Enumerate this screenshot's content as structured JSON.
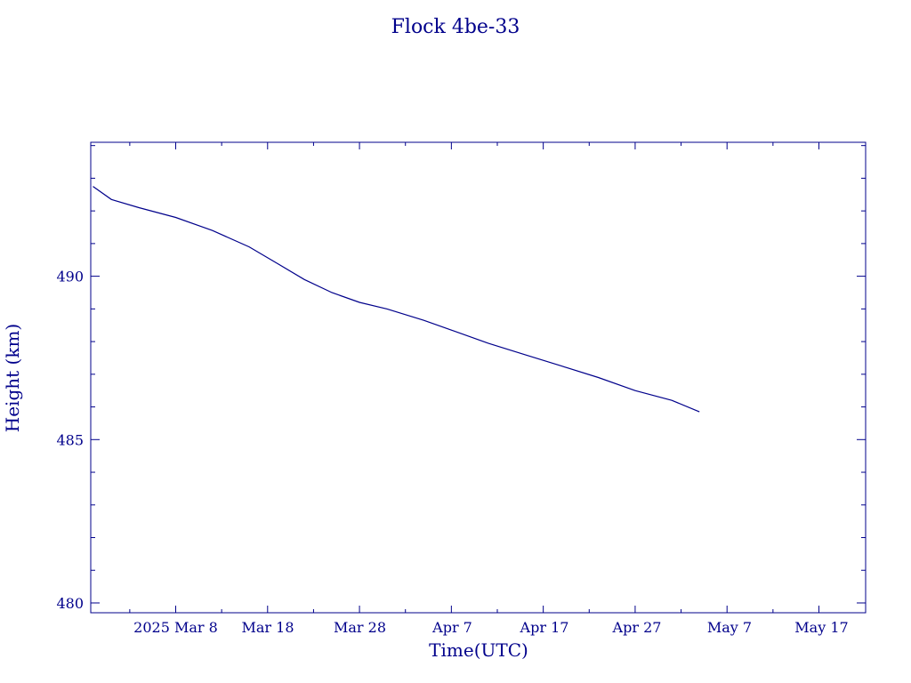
{
  "chart_data": {
    "type": "line",
    "title": "Flock 4be-33",
    "xlabel": "Time(UTC)",
    "ylabel": "Height (km)",
    "x_tick_labels": [
      "2025 Mar  8",
      "Mar 18",
      "Mar 28",
      "Apr  7",
      "Apr 17",
      "Apr 27",
      "May  7",
      "May 17"
    ],
    "y_tick_labels": [
      "480",
      "485",
      "490"
    ],
    "y_ticks": [
      480,
      485,
      490
    ],
    "ylim": [
      479.7,
      494.1
    ],
    "grid": false,
    "line_color": "#00008B",
    "series": [
      {
        "points": [
          [
            "2025-02-27",
            492.75
          ],
          [
            "2025-03-01",
            492.35
          ],
          [
            "2025-03-04",
            492.1
          ],
          [
            "2025-03-08",
            491.8
          ],
          [
            "2025-03-12",
            491.4
          ],
          [
            "2025-03-16",
            490.9
          ],
          [
            "2025-03-19",
            490.4
          ],
          [
            "2025-03-22",
            489.9
          ],
          [
            "2025-03-25",
            489.5
          ],
          [
            "2025-03-28",
            489.2
          ],
          [
            "2025-03-31",
            489.0
          ],
          [
            "2025-04-04",
            488.65
          ],
          [
            "2025-04-07",
            488.35
          ],
          [
            "2025-04-11",
            487.95
          ],
          [
            "2025-04-15",
            487.6
          ],
          [
            "2025-04-19",
            487.25
          ],
          [
            "2025-04-23",
            486.9
          ],
          [
            "2025-04-27",
            486.5
          ],
          [
            "2025-05-01",
            486.2
          ],
          [
            "2025-05-04",
            485.85
          ]
        ]
      }
    ]
  }
}
